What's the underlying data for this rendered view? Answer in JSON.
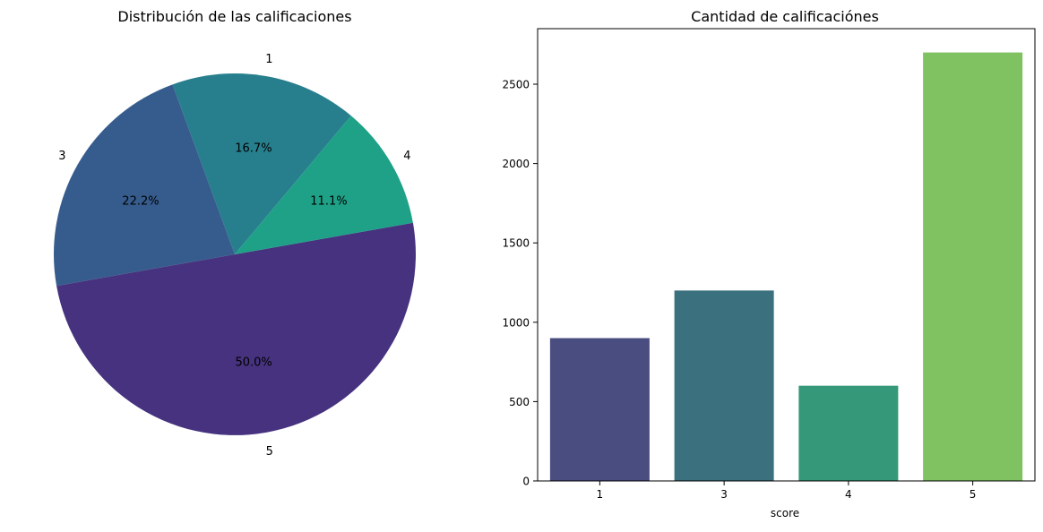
{
  "chart_data": [
    {
      "type": "pie",
      "title": "Distribución de las calificaciones",
      "labels": [
        "1",
        "3",
        "5",
        "4"
      ],
      "values": [
        16.7,
        22.2,
        50.0,
        11.1
      ],
      "autopct_labels": [
        "16.7%",
        "22.2%",
        "50.0%",
        "11.1%"
      ],
      "colors": [
        "#277f8e",
        "#365c8d",
        "#46327e",
        "#1fa187"
      ],
      "start_angle_deg": 50,
      "direction": "counterclockwise"
    },
    {
      "type": "bar",
      "title": "Cantidad de calificaciónes",
      "categories": [
        "1",
        "3",
        "4",
        "5"
      ],
      "values": [
        900,
        1200,
        600,
        2700
      ],
      "colors": [
        "#4a4d7f",
        "#3b707f",
        "#349879",
        "#80c262"
      ],
      "xlabel": "score",
      "ylabel": "",
      "ylim": [
        0,
        2850
      ],
      "yticks": [
        0,
        500,
        1000,
        1500,
        2000,
        2500
      ],
      "ytick_labels": [
        "0",
        "500",
        "1000",
        "1500",
        "2000",
        "2500"
      ]
    }
  ]
}
